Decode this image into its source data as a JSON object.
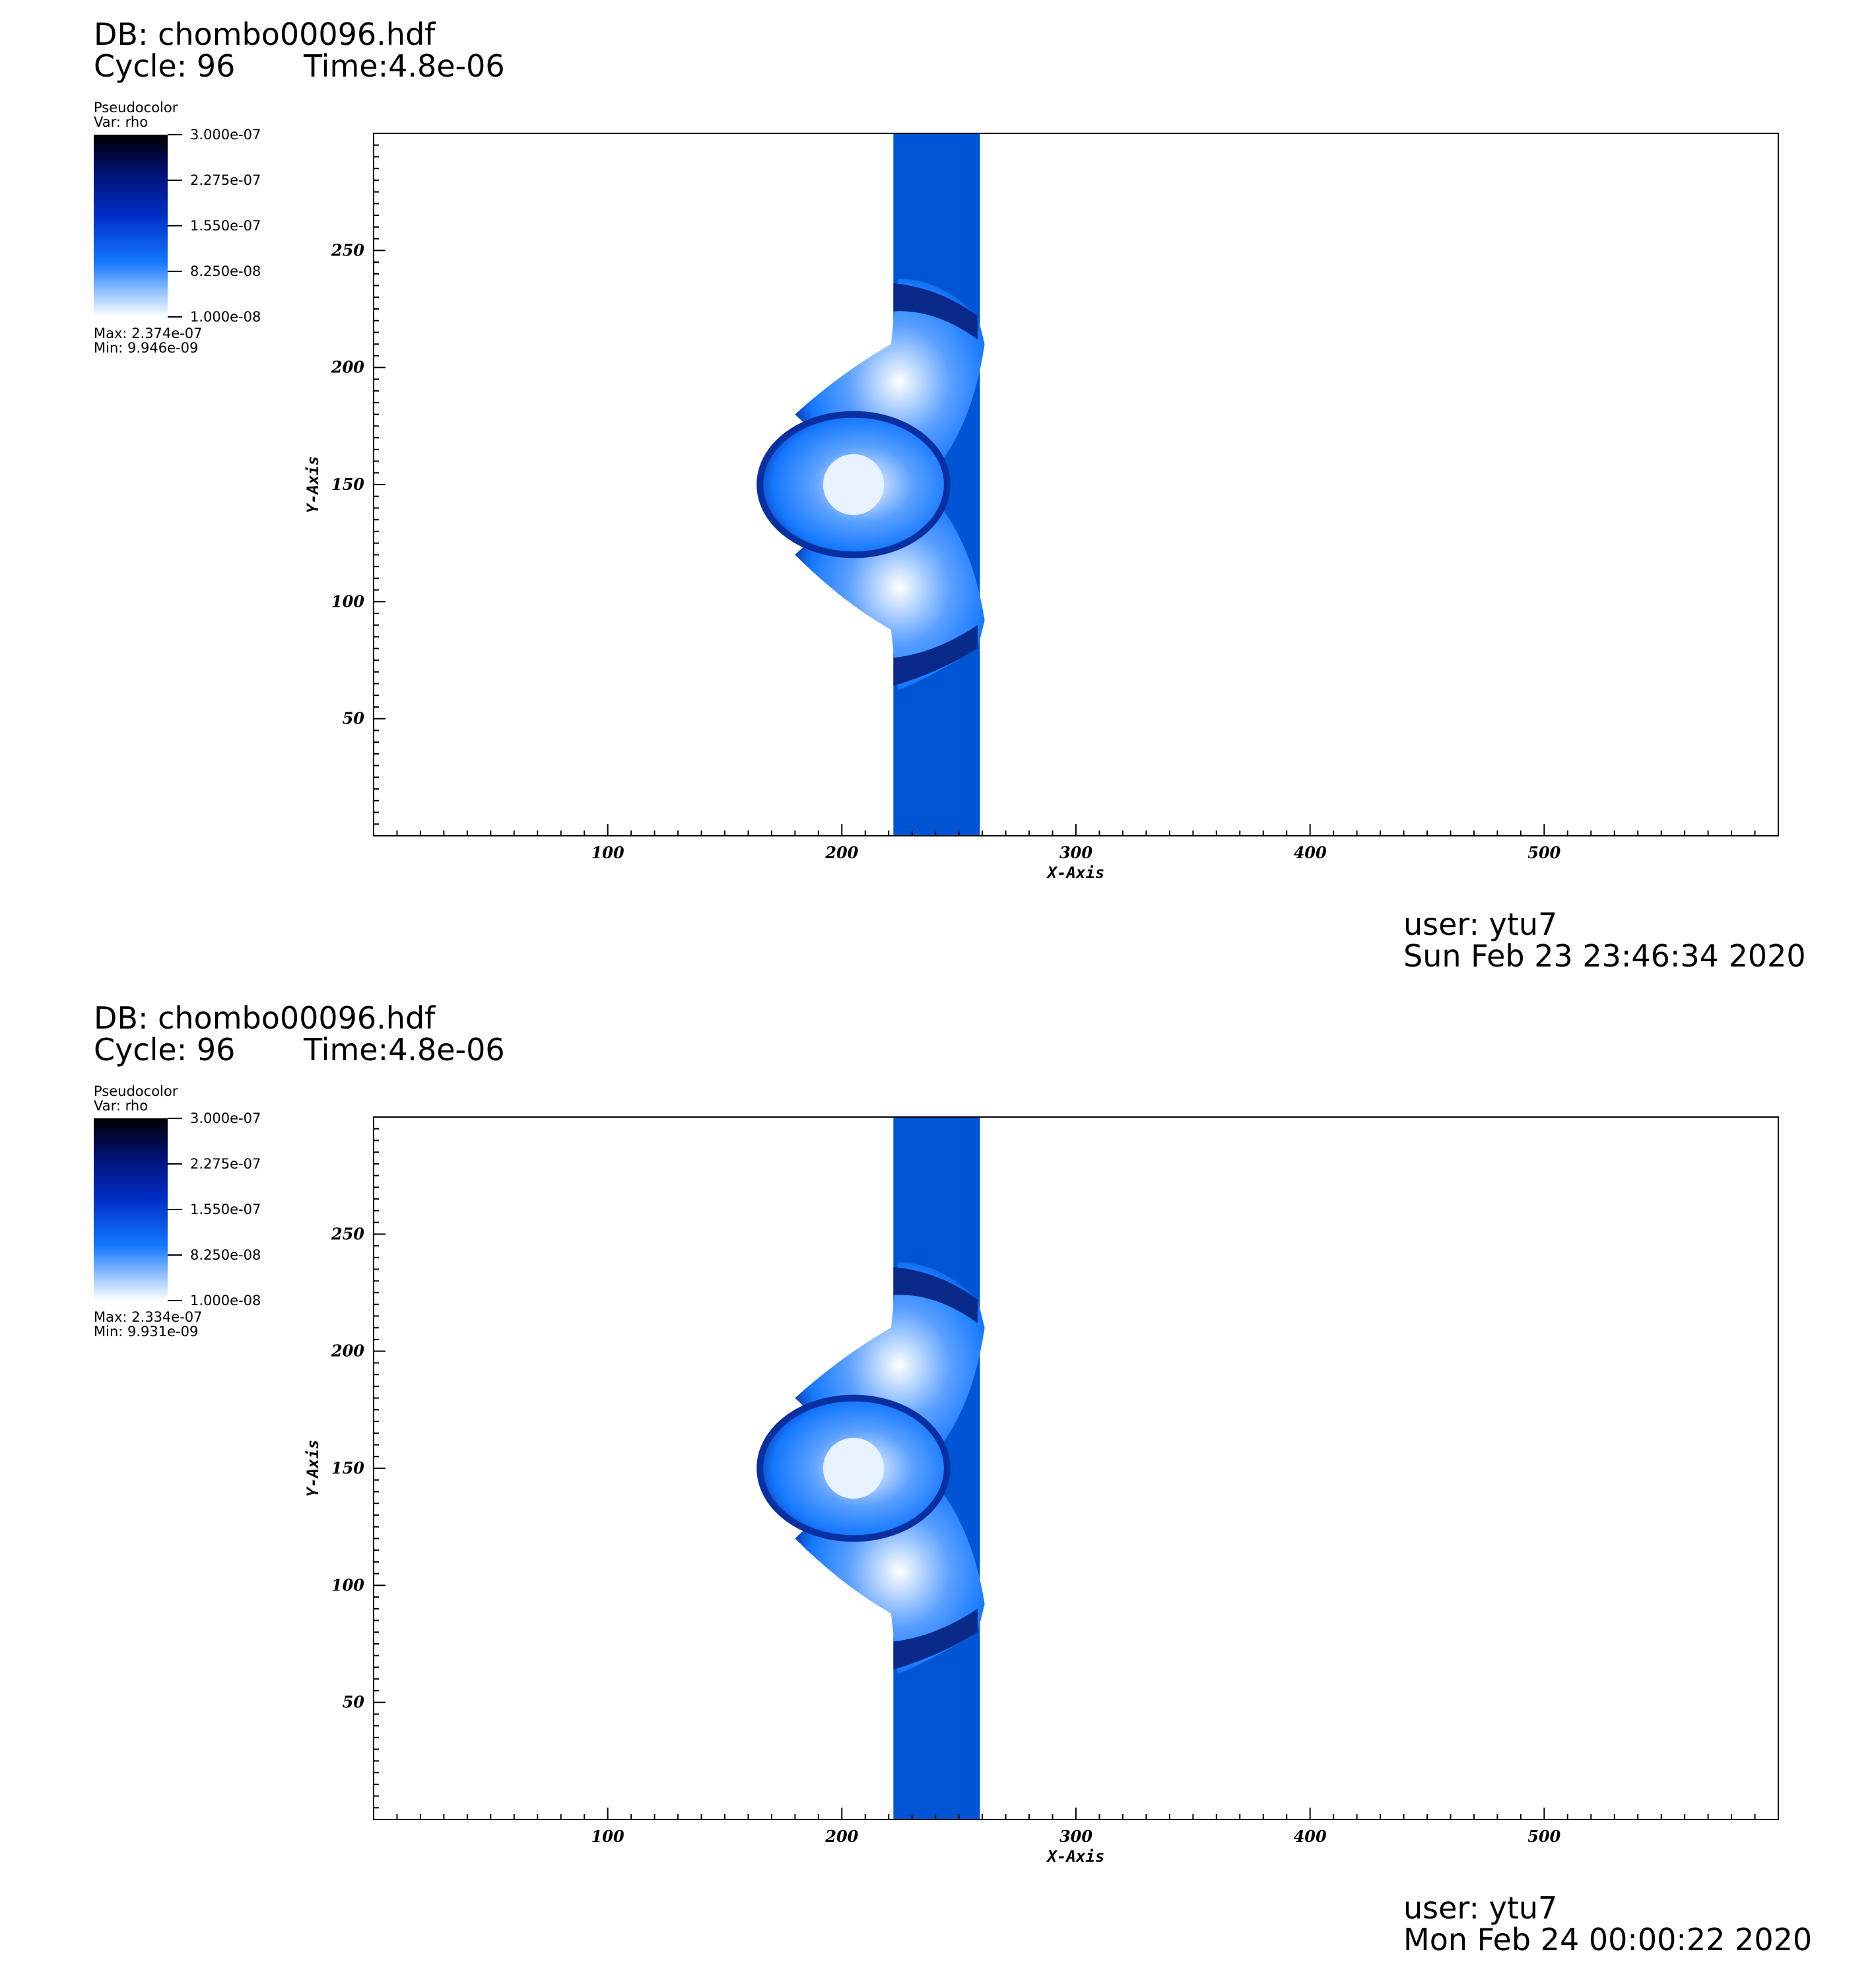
{
  "panels": [
    {
      "db_title": "DB: chombo00096.hdf",
      "cycle": "Cycle: 96",
      "time": "Time:4.8e-06",
      "legend": {
        "title": "Pseudocolor",
        "var": "Var: rho",
        "ticks": [
          "3.000e-07",
          "2.275e-07",
          "1.550e-07",
          "8.250e-08",
          "1.000e-08"
        ],
        "max": "Max:  2.374e-07",
        "min": "Min:  9.946e-09"
      },
      "user": "user: ytu7",
      "date": "Sun Feb 23 23:46:34 2020"
    },
    {
      "db_title": "DB: chombo00096.hdf",
      "cycle": "Cycle: 96",
      "time": "Time:4.8e-06",
      "legend": {
        "title": "Pseudocolor",
        "var": "Var: rho",
        "ticks": [
          "3.000e-07",
          "2.275e-07",
          "1.550e-07",
          "8.250e-08",
          "1.000e-08"
        ],
        "max": "Max:  2.334e-07",
        "min": "Min:  9.931e-09"
      },
      "user": "user: ytu7",
      "date": "Mon Feb 24 00:00:22 2020"
    }
  ],
  "chart_data": [
    {
      "type": "heatmap",
      "variable": "rho",
      "xlabel": "X-Axis",
      "ylabel": "Y-Axis",
      "xlim": [
        0,
        600
      ],
      "ylim": [
        0,
        300
      ],
      "xticks": [
        100,
        200,
        300,
        400,
        500
      ],
      "yticks": [
        50,
        100,
        150,
        200,
        250
      ],
      "colorbar_range": [
        1e-08,
        3e-07
      ],
      "data_max": 2.374e-07,
      "data_min": 9.946e-09,
      "colors": {
        "low": "#ffffff",
        "mid": "#1478ff",
        "band": "#0055d4",
        "high": "#000000"
      },
      "band_x": [
        222,
        259
      ]
    },
    {
      "type": "heatmap",
      "variable": "rho",
      "xlabel": "X-Axis",
      "ylabel": "Y-Axis",
      "xlim": [
        0,
        600
      ],
      "ylim": [
        0,
        300
      ],
      "xticks": [
        100,
        200,
        300,
        400,
        500
      ],
      "yticks": [
        50,
        100,
        150,
        200,
        250
      ],
      "colorbar_range": [
        1e-08,
        3e-07
      ],
      "data_max": 2.334e-07,
      "data_min": 9.931e-09,
      "colors": {
        "low": "#ffffff",
        "mid": "#1478ff",
        "band": "#0055d4",
        "high": "#000000"
      },
      "band_x": [
        222,
        259
      ]
    }
  ]
}
